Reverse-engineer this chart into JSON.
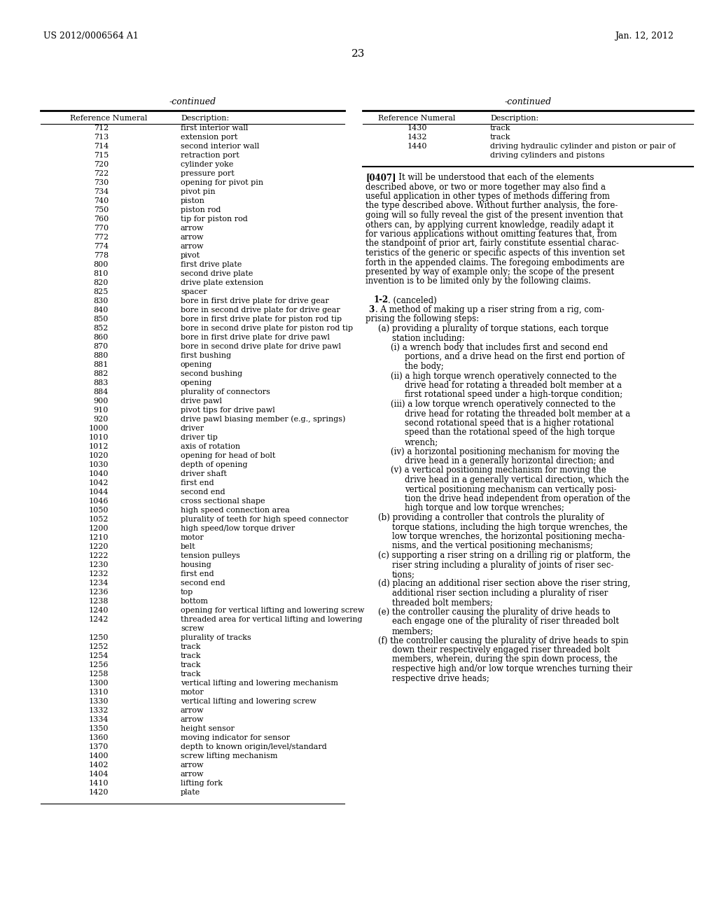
{
  "bg_color": "#ffffff",
  "header_left": "US 2012/0006564 A1",
  "header_right": "Jan. 12, 2012",
  "page_number": "23",
  "left_table_title": "-continued",
  "left_col1_header": "Reference Numeral",
  "left_col2_header": "Description:",
  "left_entries": [
    [
      "712",
      "first interior wall"
    ],
    [
      "713",
      "extension port"
    ],
    [
      "714",
      "second interior wall"
    ],
    [
      "715",
      "retraction port"
    ],
    [
      "720",
      "cylinder yoke"
    ],
    [
      "722",
      "pressure port"
    ],
    [
      "730",
      "opening for pivot pin"
    ],
    [
      "734",
      "pivot pin"
    ],
    [
      "740",
      "piston"
    ],
    [
      "750",
      "piston rod"
    ],
    [
      "760",
      "tip for piston rod"
    ],
    [
      "770",
      "arrow"
    ],
    [
      "772",
      "arrow"
    ],
    [
      "774",
      "arrow"
    ],
    [
      "778",
      "pivot"
    ],
    [
      "800",
      "first drive plate"
    ],
    [
      "810",
      "second drive plate"
    ],
    [
      "820",
      "drive plate extension"
    ],
    [
      "825",
      "spacer"
    ],
    [
      "830",
      "bore in first drive plate for drive gear"
    ],
    [
      "840",
      "bore in second drive plate for drive gear"
    ],
    [
      "850",
      "bore in first drive plate for piston rod tip"
    ],
    [
      "852",
      "bore in second drive plate for piston rod tip"
    ],
    [
      "860",
      "bore in first drive plate for drive pawl"
    ],
    [
      "870",
      "bore in second drive plate for drive pawl"
    ],
    [
      "880",
      "first bushing"
    ],
    [
      "881",
      "opening"
    ],
    [
      "882",
      "second bushing"
    ],
    [
      "883",
      "opening"
    ],
    [
      "884",
      "plurality of connectors"
    ],
    [
      "900",
      "drive pawl"
    ],
    [
      "910",
      "pivot tips for drive pawl"
    ],
    [
      "920",
      "drive pawl biasing member (e.g., springs)"
    ],
    [
      "1000",
      "driver"
    ],
    [
      "1010",
      "driver tip"
    ],
    [
      "1012",
      "axis of rotation"
    ],
    [
      "1020",
      "opening for head of bolt"
    ],
    [
      "1030",
      "depth of opening"
    ],
    [
      "1040",
      "driver shaft"
    ],
    [
      "1042",
      "first end"
    ],
    [
      "1044",
      "second end"
    ],
    [
      "1046",
      "cross sectional shape"
    ],
    [
      "1050",
      "high speed connection area"
    ],
    [
      "1052",
      "plurality of teeth for high speed connector"
    ],
    [
      "1200",
      "high speed/low torque driver"
    ],
    [
      "1210",
      "motor"
    ],
    [
      "1220",
      "belt"
    ],
    [
      "1222",
      "tension pulleys"
    ],
    [
      "1230",
      "housing"
    ],
    [
      "1232",
      "first end"
    ],
    [
      "1234",
      "second end"
    ],
    [
      "1236",
      "top"
    ],
    [
      "1238",
      "bottom"
    ],
    [
      "1240",
      "opening for vertical lifting and lowering screw"
    ],
    [
      "1242",
      "threaded area for vertical lifting and lowering\nscrew"
    ],
    [
      "1250",
      "plurality of tracks"
    ],
    [
      "1252",
      "track"
    ],
    [
      "1254",
      "track"
    ],
    [
      "1256",
      "track"
    ],
    [
      "1258",
      "track"
    ],
    [
      "1300",
      "vertical lifting and lowering mechanism"
    ],
    [
      "1310",
      "motor"
    ],
    [
      "1330",
      "vertical lifting and lowering screw"
    ],
    [
      "1332",
      "arrow"
    ],
    [
      "1334",
      "arrow"
    ],
    [
      "1350",
      "height sensor"
    ],
    [
      "1360",
      "moving indicator for sensor"
    ],
    [
      "1370",
      "depth to known origin/level/standard"
    ],
    [
      "1400",
      "screw lifting mechanism"
    ],
    [
      "1402",
      "arrow"
    ],
    [
      "1404",
      "arrow"
    ],
    [
      "1410",
      "lifting fork"
    ],
    [
      "1420",
      "plate"
    ]
  ],
  "right_table_title": "-continued",
  "right_col1_header": "Reference Numeral",
  "right_col2_header": "Description:",
  "right_entries": [
    [
      "1430",
      "track"
    ],
    [
      "1432",
      "track"
    ],
    [
      "1440",
      "driving hydraulic cylinder and piston or pair of\ndriving cylinders and pistons"
    ]
  ],
  "paragraph_label": "[0407]",
  "paragraph_text": "It will be understood that each of the elements described above, or two or more together may also find a useful application in other types of methods differing from the type described above. Without further analysis, the fore-going will so fully reveal the gist of the present invention that others can, by applying current knowledge, readily adapt it for various applications without omitting features that, from the standpoint of prior art, fairly constitute essential charac-teristics of the generic or specific aspects of this invention set forth in the appended claims. The foregoing embodiments are presented by way of example only; the scope of the present invention is to be limited only by the following claims.",
  "claims_12": "1-2. (canceled)",
  "claim3_line1": "3. A method of making up a riser string from a rig, com-",
  "claim3_line2": "prising the following steps:",
  "step_a_line1": "(a) providing a plurality of torque stations, each torque",
  "step_a_line2": "station including:",
  "step_i_line1": "(i) a wrench body that includes first and second end",
  "step_i_line2": "portions, and a drive head on the first end portion of",
  "step_i_line3": "the body;",
  "step_ii_line1": "(ii) a high torque wrench operatively connected to the",
  "step_ii_line2": "drive head for rotating a threaded bolt member at a",
  "step_ii_line3": "first rotational speed under a high-torque condition;",
  "step_iii_line1": "(iii) a low torque wrench operatively connected to the",
  "step_iii_line2": "drive head for rotating the threaded bolt member at a",
  "step_iii_line3": "second rotational speed that is a higher rotational",
  "step_iii_line4": "speed than the rotational speed of the high torque",
  "step_iii_line5": "wrench;",
  "step_iv_line1": "(iv) a horizontal positioning mechanism for moving the",
  "step_iv_line2": "drive head in a generally horizontal direction; and",
  "step_v_line1": "(v) a vertical positioning mechanism for moving the",
  "step_v_line2": "drive head in a generally vertical direction, which the",
  "step_v_line3": "vertical positioning mechanism can vertically posi-",
  "step_v_line4": "tion the drive head independent from operation of the",
  "step_v_line5": "high torque and low torque wrenches;",
  "step_b_line1": "(b) providing a controller that controls the plurality of",
  "step_b_line2": "torque stations, including the high torque wrenches, the",
  "step_b_line3": "low torque wrenches, the horizontal positioning mecha-",
  "step_b_line4": "nisms, and the vertical positioning mechanisms;",
  "step_c_line1": "(c) supporting a riser string on a drilling rig or platform, the",
  "step_c_line2": "riser string including a plurality of joints of riser sec-",
  "step_c_line3": "tions;",
  "step_d_line1": "(d) placing an additional riser section above the riser string,",
  "step_d_line2": "additional riser section including a plurality of riser",
  "step_d_line3": "threaded bolt members;",
  "step_e_line1": "(e) the controller causing the plurality of drive heads to",
  "step_e_line2": "each engage one of the plurality of riser threaded bolt",
  "step_e_line3": "members;",
  "step_f_line1": "(f) the controller causing the plurality of drive heads to spin",
  "step_f_line2": "down their respectively engaged riser threaded bolt",
  "step_f_line3": "members, wherein, during the spin down process, the",
  "step_f_line4": "respective high and/or low torque wrenches turning their",
  "step_f_line5": "respective drive heads;"
}
